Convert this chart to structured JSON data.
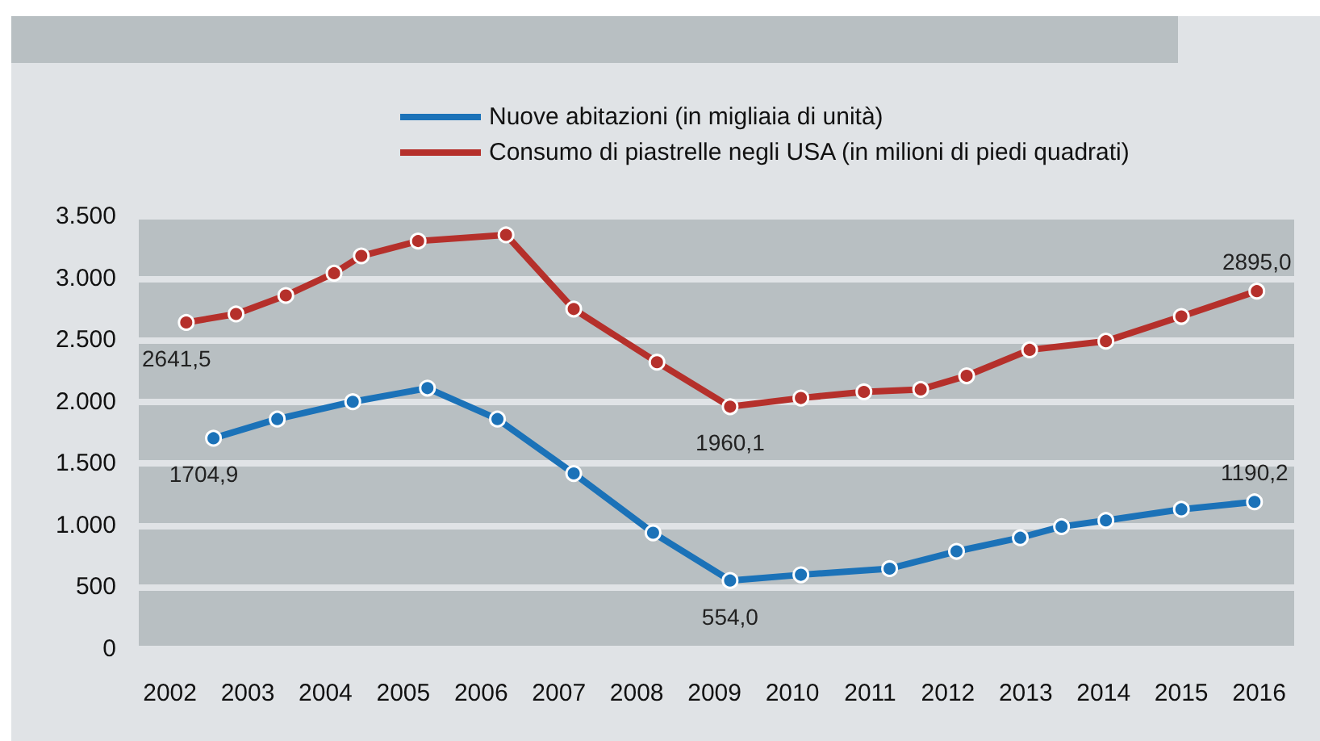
{
  "chart_data": {
    "type": "line",
    "series": [
      {
        "name": "Nuove abitazioni (in migliaia di unità)",
        "color": "#1b72b8",
        "x": [
          2002.56,
          2003.38,
          2004.35,
          2005.31,
          2006.21,
          2007.19,
          2008.21,
          2009.2,
          2010.11,
          2011.25,
          2012.11,
          2012.93,
          2013.46,
          2014.03,
          2015.0,
          2015.94
        ],
        "values": [
          1704.9,
          1860,
          2000,
          2110,
          1860,
          1420,
          940,
          554.0,
          600,
          650,
          790,
          900,
          990,
          1040,
          1130,
          1190.2
        ],
        "value_labels": [
          "1704,9",
          null,
          null,
          null,
          null,
          null,
          null,
          "554,0",
          null,
          null,
          null,
          null,
          null,
          null,
          null,
          "1190,2"
        ]
      },
      {
        "name": "Consumo di piastrelle negli USA (in milioni di piedi quadrati)",
        "color": "#b5302b",
        "x": [
          2002.21,
          2002.85,
          2003.49,
          2004.11,
          2004.46,
          2005.19,
          2006.32,
          2007.19,
          2008.26,
          2009.2,
          2010.11,
          2010.92,
          2011.65,
          2012.24,
          2013.05,
          2014.03,
          2015.0,
          2015.97
        ],
        "values": [
          2641.5,
          2710,
          2860,
          3040,
          3180,
          3300,
          3350,
          2750,
          2320,
          1960.1,
          2030,
          2080,
          2100,
          2210,
          2420,
          2490,
          2690,
          2895.0
        ],
        "value_labels": [
          "2641,5",
          null,
          null,
          null,
          null,
          null,
          null,
          null,
          null,
          "1960,1",
          null,
          null,
          null,
          null,
          null,
          null,
          null,
          "2895,0"
        ]
      }
    ],
    "xlim": [
      2001.6,
      2016.45
    ],
    "xticks": [
      2002,
      2003,
      2004,
      2005,
      2006,
      2007,
      2008,
      2009,
      2010,
      2011,
      2012,
      2013,
      2014,
      2015,
      2016
    ],
    "ylim": [
      0,
      3500
    ],
    "yticks": [
      {
        "value": 0,
        "label": "0"
      },
      {
        "value": 500,
        "label": "500"
      },
      {
        "value": 1000,
        "label": "1.000"
      },
      {
        "value": 1500,
        "label": "1.500"
      },
      {
        "value": 2000,
        "label": "2.000"
      },
      {
        "value": 2500,
        "label": "2.500"
      },
      {
        "value": 3000,
        "label": "3.000"
      },
      {
        "value": 3500,
        "label": "3.500"
      }
    ],
    "grid": "y",
    "legend": "top",
    "marker": "circle",
    "line_style": "solid"
  }
}
